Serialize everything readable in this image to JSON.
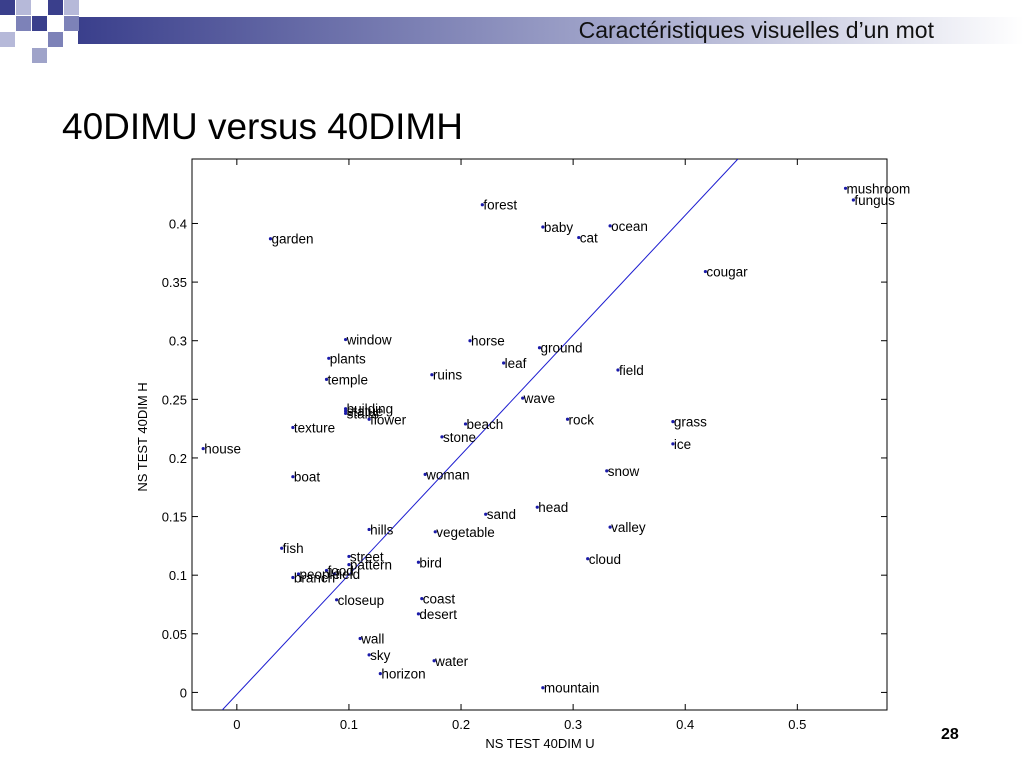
{
  "slide": {
    "header": "Caractéristiques visuelles d’un mot",
    "title": "40DIMU versus 40DIMH",
    "page_number": "28"
  },
  "chart_data": {
    "type": "scatter",
    "title": "",
    "xlabel": "NS TEST 40DIM U",
    "ylabel": "NS TEST 40DIM H",
    "xlim": [
      -0.04,
      0.58
    ],
    "ylim": [
      -0.015,
      0.455
    ],
    "xticks": [
      0,
      0.1,
      0.2,
      0.3,
      0.4,
      0.5
    ],
    "yticks": [
      0,
      0.05,
      0.1,
      0.15,
      0.2,
      0.25,
      0.3,
      0.35,
      0.4
    ],
    "tick_labels_x": [
      "0",
      "0.1",
      "0.2",
      "0.3",
      "0.4",
      "0.5"
    ],
    "tick_labels_y": [
      "0",
      "0.05",
      "0.1",
      "0.15",
      "0.2",
      "0.25",
      "0.3",
      "0.35",
      "0.4"
    ],
    "point_color": "#1a1aa8",
    "reference_line": {
      "points": [
        [
          -0.013,
          -0.015
        ],
        [
          0.447,
          0.455
        ]
      ],
      "color": "#1c1cd0"
    },
    "points": [
      {
        "label": "mushroom",
        "x": 0.543,
        "y": 0.43
      },
      {
        "label": "fungus",
        "x": 0.55,
        "y": 0.42
      },
      {
        "label": "forest",
        "x": 0.219,
        "y": 0.416
      },
      {
        "label": "baby",
        "x": 0.273,
        "y": 0.397
      },
      {
        "label": "ocean",
        "x": 0.333,
        "y": 0.398
      },
      {
        "label": "cat",
        "x": 0.305,
        "y": 0.388
      },
      {
        "label": "garden",
        "x": 0.03,
        "y": 0.387
      },
      {
        "label": "cougar",
        "x": 0.418,
        "y": 0.359
      },
      {
        "label": "window",
        "x": 0.097,
        "y": 0.301
      },
      {
        "label": "horse",
        "x": 0.208,
        "y": 0.3
      },
      {
        "label": "ground",
        "x": 0.27,
        "y": 0.294
      },
      {
        "label": "plants",
        "x": 0.082,
        "y": 0.285
      },
      {
        "label": "leaf",
        "x": 0.238,
        "y": 0.281
      },
      {
        "label": "field",
        "x": 0.34,
        "y": 0.275
      },
      {
        "label": "ruins",
        "x": 0.174,
        "y": 0.271
      },
      {
        "label": "temple",
        "x": 0.08,
        "y": 0.267
      },
      {
        "label": "wave",
        "x": 0.255,
        "y": 0.251
      },
      {
        "label": "building",
        "x": 0.097,
        "y": 0.242
      },
      {
        "label": "statue",
        "x": 0.097,
        "y": 0.24
      },
      {
        "label": "stairs",
        "x": 0.097,
        "y": 0.238
      },
      {
        "label": "flower",
        "x": 0.118,
        "y": 0.233
      },
      {
        "label": "rock",
        "x": 0.295,
        "y": 0.233
      },
      {
        "label": "grass",
        "x": 0.389,
        "y": 0.231
      },
      {
        "label": "beach",
        "x": 0.204,
        "y": 0.229
      },
      {
        "label": "texture",
        "x": 0.05,
        "y": 0.226
      },
      {
        "label": "stone",
        "x": 0.183,
        "y": 0.218
      },
      {
        "label": "ice",
        "x": 0.389,
        "y": 0.212
      },
      {
        "label": "house",
        "x": -0.03,
        "y": 0.208
      },
      {
        "label": "snow",
        "x": 0.33,
        "y": 0.189
      },
      {
        "label": "woman",
        "x": 0.168,
        "y": 0.186
      },
      {
        "label": "boat",
        "x": 0.05,
        "y": 0.184
      },
      {
        "label": "head",
        "x": 0.268,
        "y": 0.158
      },
      {
        "label": "sand",
        "x": 0.222,
        "y": 0.152
      },
      {
        "label": "valley",
        "x": 0.333,
        "y": 0.141
      },
      {
        "label": "hills",
        "x": 0.118,
        "y": 0.139
      },
      {
        "label": "vegetable",
        "x": 0.177,
        "y": 0.137
      },
      {
        "label": "fish",
        "x": 0.04,
        "y": 0.123
      },
      {
        "label": "street",
        "x": 0.1,
        "y": 0.116
      },
      {
        "label": "cloud",
        "x": 0.313,
        "y": 0.114
      },
      {
        "label": "bird",
        "x": 0.162,
        "y": 0.111
      },
      {
        "label": "pattern",
        "x": 0.1,
        "y": 0.109
      },
      {
        "label": "food",
        "x": 0.08,
        "y": 0.104
      },
      {
        "label": "field",
        "x": 0.087,
        "y": 0.101
      },
      {
        "label": "people",
        "x": 0.055,
        "y": 0.101
      },
      {
        "label": "branch",
        "x": 0.05,
        "y": 0.098
      },
      {
        "label": "closeup",
        "x": 0.089,
        "y": 0.079
      },
      {
        "label": "coast",
        "x": 0.165,
        "y": 0.08
      },
      {
        "label": "desert",
        "x": 0.162,
        "y": 0.067
      },
      {
        "label": "wall",
        "x": 0.11,
        "y": 0.046
      },
      {
        "label": "sky",
        "x": 0.118,
        "y": 0.032
      },
      {
        "label": "water",
        "x": 0.176,
        "y": 0.027
      },
      {
        "label": "horizon",
        "x": 0.128,
        "y": 0.016
      },
      {
        "label": "mountain",
        "x": 0.273,
        "y": 0.004
      }
    ]
  }
}
